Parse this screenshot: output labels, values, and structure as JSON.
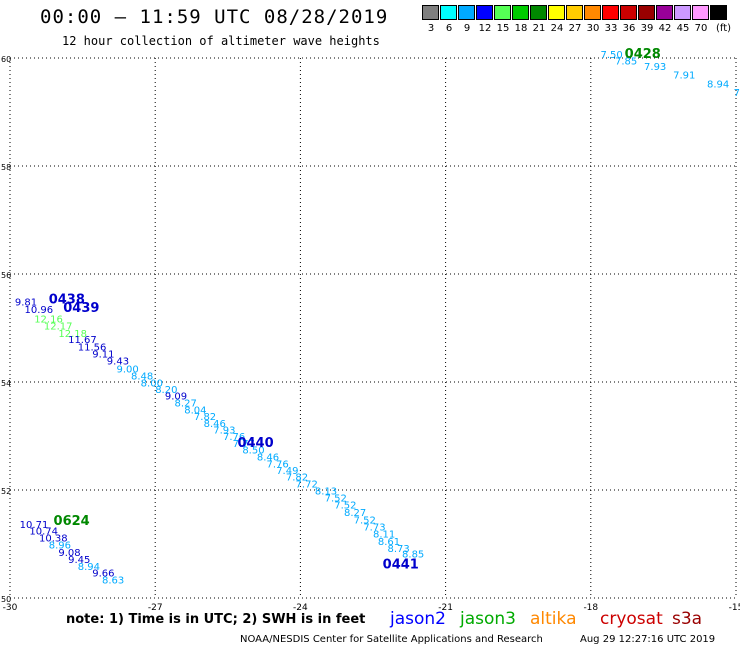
{
  "header": {
    "title": "00:00 – 11:59 UTC 08/28/2019",
    "subtitle": "12 hour collection of altimeter wave heights"
  },
  "legend": {
    "unit": "(ft)",
    "bins": [
      {
        "label": "3",
        "color": "#7f7f7f"
      },
      {
        "label": "6",
        "color": "#00ffff"
      },
      {
        "label": "9",
        "color": "#00aaff"
      },
      {
        "label": "12",
        "color": "#0000ff"
      },
      {
        "label": "15",
        "color": "#55ff55"
      },
      {
        "label": "18",
        "color": "#00cc00"
      },
      {
        "label": "21",
        "color": "#008800"
      },
      {
        "label": "24",
        "color": "#ffff00"
      },
      {
        "label": "27",
        "color": "#ffcc00"
      },
      {
        "label": "30",
        "color": "#ff8800"
      },
      {
        "label": "33",
        "color": "#ff0000"
      },
      {
        "label": "36",
        "color": "#cc0000"
      },
      {
        "label": "39",
        "color": "#990000"
      },
      {
        "label": "42",
        "color": "#990099"
      },
      {
        "label": "45",
        "color": "#cc99ff"
      },
      {
        "label": "70",
        "color": "#ff99ff"
      },
      {
        "label": "",
        "color": "#000000"
      }
    ]
  },
  "axes": {
    "lon_ticks": [
      "-30",
      "-27",
      "-24",
      "-21",
      "-18",
      "-15"
    ],
    "lat_ticks": [
      "60",
      "58",
      "56",
      "54",
      "52",
      "50"
    ],
    "lon_range": [
      -30,
      -15
    ],
    "lat_range": [
      50,
      60
    ]
  },
  "track_labels": [
    {
      "text": "0428",
      "lon": -17.3,
      "lat": 60.0,
      "color": "#008800"
    },
    {
      "text": "0438",
      "lon": -29.2,
      "lat": 55.45,
      "color": "#0000cc"
    },
    {
      "text": "0439",
      "lon": -28.9,
      "lat": 55.3,
      "color": "#0000cc"
    },
    {
      "text": "0440",
      "lon": -25.3,
      "lat": 52.8,
      "color": "#0000cc"
    },
    {
      "text": "0624",
      "lon": -29.1,
      "lat": 51.35,
      "color": "#008800"
    },
    {
      "text": "0441",
      "lon": -22.3,
      "lat": 50.55,
      "color": "#0000cc"
    }
  ],
  "swh_points": [
    {
      "text": "7.50",
      "lon": -17.8,
      "lat": 60.0,
      "color": "#00aaff"
    },
    {
      "text": "7.85",
      "lon": -17.5,
      "lat": 59.88,
      "color": "#00aaff"
    },
    {
      "text": "7.93",
      "lon": -16.9,
      "lat": 59.78,
      "color": "#00aaff"
    },
    {
      "text": "7.91",
      "lon": -16.3,
      "lat": 59.62,
      "color": "#00aaff"
    },
    {
      "text": "8.94",
      "lon": -15.6,
      "lat": 59.45,
      "color": "#00aaff"
    },
    {
      "text": "7",
      "lon": -15.05,
      "lat": 59.3,
      "color": "#00aaff"
    },
    {
      "text": "9.81",
      "lon": -29.9,
      "lat": 55.42,
      "color": "#0000cc"
    },
    {
      "text": "10.96",
      "lon": -29.7,
      "lat": 55.28,
      "color": "#0000cc"
    },
    {
      "text": "12.16",
      "lon": -29.5,
      "lat": 55.1,
      "color": "#55ff55"
    },
    {
      "text": "12.17",
      "lon": -29.3,
      "lat": 54.97,
      "color": "#55ff55"
    },
    {
      "text": "12.18",
      "lon": -29.0,
      "lat": 54.83,
      "color": "#55ff55"
    },
    {
      "text": "11.67",
      "lon": -28.8,
      "lat": 54.72,
      "color": "#0000cc"
    },
    {
      "text": "11.56",
      "lon": -28.6,
      "lat": 54.58,
      "color": "#0000cc"
    },
    {
      "text": "9.11",
      "lon": -28.3,
      "lat": 54.45,
      "color": "#0000cc"
    },
    {
      "text": "9.43",
      "lon": -28.0,
      "lat": 54.32,
      "color": "#0000cc"
    },
    {
      "text": "9.00",
      "lon": -27.8,
      "lat": 54.18,
      "color": "#00aaff"
    },
    {
      "text": "8.48",
      "lon": -27.5,
      "lat": 54.05,
      "color": "#00aaff"
    },
    {
      "text": "8.00",
      "lon": -27.3,
      "lat": 53.92,
      "color": "#00aaff"
    },
    {
      "text": "8.20",
      "lon": -27.0,
      "lat": 53.8,
      "color": "#00aaff"
    },
    {
      "text": "9.09",
      "lon": -26.8,
      "lat": 53.68,
      "color": "#0000cc"
    },
    {
      "text": "8.27",
      "lon": -26.6,
      "lat": 53.55,
      "color": "#00aaff"
    },
    {
      "text": "8.04",
      "lon": -26.4,
      "lat": 53.42,
      "color": "#00aaff"
    },
    {
      "text": "7.82",
      "lon": -26.2,
      "lat": 53.3,
      "color": "#00aaff"
    },
    {
      "text": "8.46",
      "lon": -26.0,
      "lat": 53.17,
      "color": "#00aaff"
    },
    {
      "text": "7.93",
      "lon": -25.8,
      "lat": 53.05,
      "color": "#00aaff"
    },
    {
      "text": "7.76",
      "lon": -25.6,
      "lat": 52.93,
      "color": "#00aaff"
    },
    {
      "text": "7.77",
      "lon": -25.4,
      "lat": 52.8,
      "color": "#00aaff"
    },
    {
      "text": "8.50",
      "lon": -25.2,
      "lat": 52.68,
      "color": "#00aaff"
    },
    {
      "text": "8.46",
      "lon": -24.9,
      "lat": 52.55,
      "color": "#00aaff"
    },
    {
      "text": "7.76",
      "lon": -24.7,
      "lat": 52.42,
      "color": "#00aaff"
    },
    {
      "text": "7.49",
      "lon": -24.5,
      "lat": 52.3,
      "color": "#00aaff"
    },
    {
      "text": "7.82",
      "lon": -24.3,
      "lat": 52.18,
      "color": "#00aaff"
    },
    {
      "text": "7.72",
      "lon": -24.1,
      "lat": 52.05,
      "color": "#00aaff"
    },
    {
      "text": "8.13",
      "lon": -23.7,
      "lat": 51.92,
      "color": "#00aaff"
    },
    {
      "text": "7.52",
      "lon": -23.5,
      "lat": 51.79,
      "color": "#00aaff"
    },
    {
      "text": "7.52",
      "lon": -23.3,
      "lat": 51.66,
      "color": "#00aaff"
    },
    {
      "text": "8.27",
      "lon": -23.1,
      "lat": 51.52,
      "color": "#00aaff"
    },
    {
      "text": "7.52",
      "lon": -22.9,
      "lat": 51.38,
      "color": "#00aaff"
    },
    {
      "text": "7.73",
      "lon": -22.7,
      "lat": 51.25,
      "color": "#00aaff"
    },
    {
      "text": "8.11",
      "lon": -22.5,
      "lat": 51.12,
      "color": "#00aaff"
    },
    {
      "text": "8.61",
      "lon": -22.4,
      "lat": 50.98,
      "color": "#00aaff"
    },
    {
      "text": "8.73",
      "lon": -22.2,
      "lat": 50.85,
      "color": "#00aaff"
    },
    {
      "text": "8.85",
      "lon": -21.9,
      "lat": 50.75,
      "color": "#00aaff"
    },
    {
      "text": "10.71",
      "lon": -29.8,
      "lat": 51.3,
      "color": "#0000cc"
    },
    {
      "text": "10.74",
      "lon": -29.6,
      "lat": 51.18,
      "color": "#0000cc"
    },
    {
      "text": "10.38",
      "lon": -29.4,
      "lat": 51.05,
      "color": "#0000cc"
    },
    {
      "text": "8.96",
      "lon": -29.2,
      "lat": 50.92,
      "color": "#00aaff"
    },
    {
      "text": "9.08",
      "lon": -29.0,
      "lat": 50.78,
      "color": "#0000cc"
    },
    {
      "text": "9.45",
      "lon": -28.8,
      "lat": 50.65,
      "color": "#0000cc"
    },
    {
      "text": "8.94",
      "lon": -28.6,
      "lat": 50.52,
      "color": "#00aaff"
    },
    {
      "text": "9.66",
      "lon": -28.3,
      "lat": 50.4,
      "color": "#0000cc"
    },
    {
      "text": "8.63",
      "lon": -28.1,
      "lat": 50.27,
      "color": "#00aaff"
    }
  ],
  "footer": {
    "note": "note: 1) Time is in UTC; 2) SWH is in feet",
    "satellites": [
      {
        "name": "jason2",
        "color": "#0000ff"
      },
      {
        "name": "jason3",
        "color": "#00aa00"
      },
      {
        "name": "altika",
        "color": "#ff8800"
      },
      {
        "name": "cryosat",
        "color": "#cc0000"
      },
      {
        "name": "s3a",
        "color": "#990000"
      }
    ],
    "credit": "NOAA/NESDIS Center for Satellite Applications and Research",
    "timestamp": "Aug 29 12:27:16 UTC 2019"
  }
}
